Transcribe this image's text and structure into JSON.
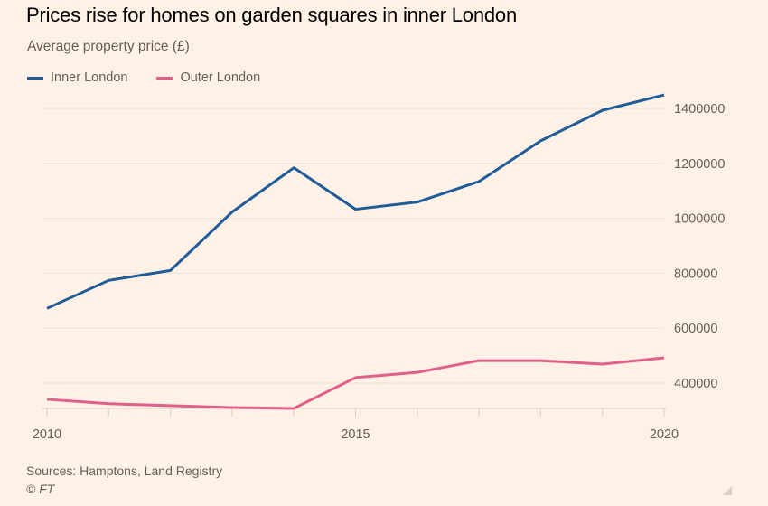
{
  "chart_data": {
    "type": "line",
    "title": "Prices rise for homes on garden squares in inner London",
    "subtitle": "Average property price (£)",
    "xlabel": "",
    "ylabel": "Average property price (£)",
    "x": [
      2010,
      2011,
      2012,
      2013,
      2014,
      2015,
      2016,
      2017,
      2018,
      2019,
      2020
    ],
    "series": [
      {
        "name": "Inner London",
        "color": "#1f5c99",
        "values": [
          672000,
          774000,
          810000,
          1023000,
          1184000,
          1033000,
          1059000,
          1134000,
          1282000,
          1393000,
          1449000
        ]
      },
      {
        "name": "Outer London",
        "color": "#e0608a",
        "values": [
          341000,
          325000,
          318000,
          311000,
          308000,
          420000,
          439000,
          482000,
          482000,
          469000,
          492000
        ]
      }
    ],
    "xlim": [
      2010,
      2020
    ],
    "ylim": [
      307000,
      1470000
    ],
    "xticks": [
      2010,
      2015,
      2020
    ],
    "xtick_labels": [
      "2010",
      "2015",
      "2020"
    ],
    "yticks": [
      400000,
      600000,
      800000,
      1000000,
      1200000,
      1400000
    ],
    "ytick_labels": [
      "400000",
      "600000",
      "800000",
      "1000000",
      "1200000",
      "1400000"
    ],
    "grid": true,
    "legend_position": "top-left",
    "yaxis_side": "right"
  },
  "footer": {
    "source": "Sources: Hamptons, Land Registry",
    "credit": "© FT"
  }
}
